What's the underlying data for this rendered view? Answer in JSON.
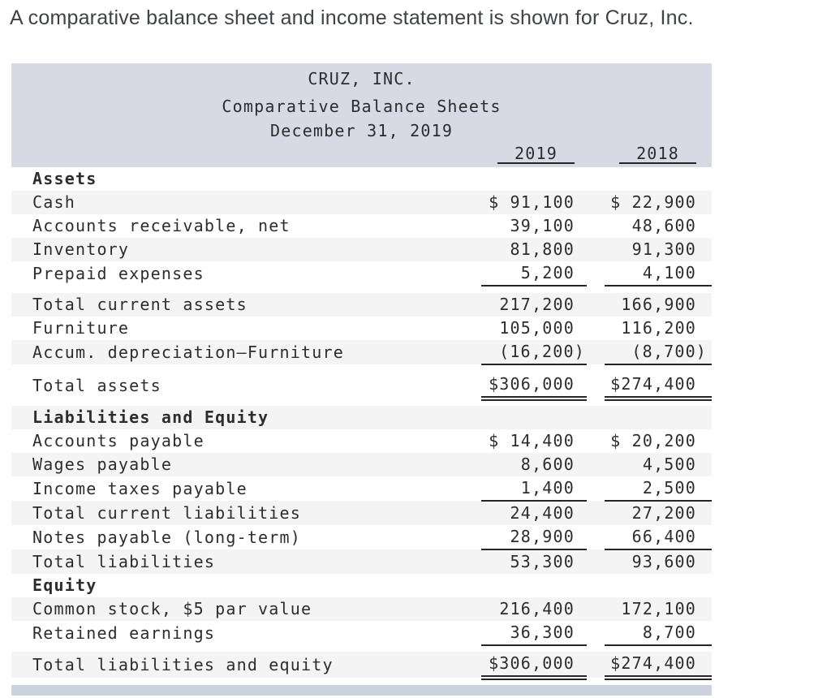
{
  "page": {
    "intro": "A comparative balance sheet and income statement is shown for Cruz, Inc."
  },
  "statement": {
    "company": "CRUZ, INC.",
    "title": "Comparative Balance Sheets",
    "date": "December 31, 2019",
    "columns": [
      "2019",
      "2018"
    ],
    "rows": [
      {
        "label": "Assets",
        "bold": true
      },
      {
        "label": "Cash",
        "v1": "$ 91,100",
        "v2": "$ 22,900",
        "shade": true
      },
      {
        "label": "Accounts receivable, net",
        "v1": "39,100",
        "v2": "48,600"
      },
      {
        "label": "Inventory",
        "v1": "81,800",
        "v2": "91,300",
        "shade": true
      },
      {
        "label": "Prepaid expenses",
        "v1": "5,200",
        "v2": "4,100",
        "underline": "single"
      },
      {
        "label": "Total current assets",
        "v1": "217,200",
        "v2": "166,900",
        "shade": true,
        "gap_before": 8
      },
      {
        "label": "Furniture",
        "v1": "105,000",
        "v2": "116,200"
      },
      {
        "label": "Accum. depreciation—Furniture",
        "v1": "(16,200)",
        "v2": "(8,700)",
        "shade": true,
        "underline": "single",
        "hang": true
      },
      {
        "label": "Total assets",
        "v1": "$306,000",
        "v2": "$274,400",
        "underline": "double",
        "gap_before": 9
      },
      {
        "label": "Liabilities and Equity",
        "bold": true,
        "shade": true,
        "gap_before": 6
      },
      {
        "label": "Accounts payable",
        "v1": "$ 14,400",
        "v2": "$ 20,200"
      },
      {
        "label": "Wages payable",
        "v1": "8,600",
        "v2": "4,500",
        "shade": true
      },
      {
        "label": "Income taxes payable",
        "v1": "1,400",
        "v2": "2,500",
        "underline": "single"
      },
      {
        "label": "Total current liabilities",
        "v1": "24,400",
        "v2": "27,200",
        "shade": true
      },
      {
        "label": "Notes payable (long-term)",
        "v1": "28,900",
        "v2": "66,400",
        "underline": "single"
      },
      {
        "label": "Total liabilities",
        "v1": "53,300",
        "v2": "93,600",
        "shade": true
      },
      {
        "label": "Equity",
        "bold": true
      },
      {
        "label": "Common stock, $5 par value",
        "v1": "216,400",
        "v2": "172,100",
        "shade": true
      },
      {
        "label": "Retained earnings",
        "v1": "36,300",
        "v2": "8,700",
        "underline": "single"
      },
      {
        "label": "Total liabilities and equity",
        "v1": "$306,000",
        "v2": "$274,400",
        "shade": true,
        "underline": "double",
        "gap_before": 7
      }
    ]
  },
  "colors": {
    "band": "#d7dae4",
    "bar": "#ccd2df",
    "stripe": "#f4f4f4",
    "rule": "#262626",
    "text": "#2d2d2d",
    "intro_text": "#3f4347"
  }
}
